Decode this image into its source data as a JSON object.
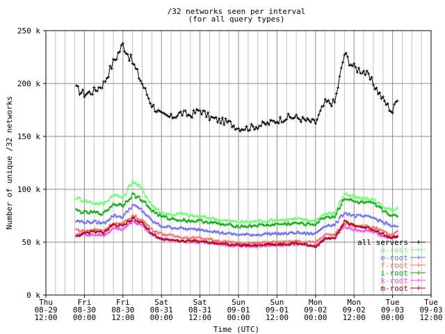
{
  "chart_data": {
    "type": "line",
    "title": "/32 networks seen per interval",
    "subtitle": "(for all query types)",
    "xlabel": "Time (UTC)",
    "ylabel": "Number of unique /32 networks",
    "grid": true,
    "legend_position": "bottom-right",
    "ylim": [
      0,
      250000
    ],
    "yticks": [
      "0 k",
      "50 k",
      "100 k",
      "150 k",
      "200 k",
      "250 k"
    ],
    "xlim": [
      -12,
      108
    ],
    "xticks": [
      {
        "h": -12,
        "lines": [
          "Thu",
          "08-29",
          "12:00"
        ]
      },
      {
        "h": 0,
        "lines": [
          "Fri",
          "08-30",
          "00:00"
        ]
      },
      {
        "h": 12,
        "lines": [
          "Fri",
          "08-30",
          "12:00"
        ]
      },
      {
        "h": 24,
        "lines": [
          "Sat",
          "08-31",
          "00:00"
        ]
      },
      {
        "h": 36,
        "lines": [
          "Sat",
          "08-31",
          "12:00"
        ]
      },
      {
        "h": 48,
        "lines": [
          "Sun",
          "09-01",
          "00:00"
        ]
      },
      {
        "h": 60,
        "lines": [
          "Sun",
          "09-01",
          "12:00"
        ]
      },
      {
        "h": 72,
        "lines": [
          "Mon",
          "09-02",
          "00:00"
        ]
      },
      {
        "h": 84,
        "lines": [
          "Mon",
          "09-02",
          "12:00"
        ]
      },
      {
        "h": 96,
        "lines": [
          "Tue",
          "09-03",
          "00:00"
        ]
      },
      {
        "h": 108,
        "lines": [
          "Tue",
          "09-03",
          "12:00"
        ]
      }
    ],
    "x_hours": [
      -2.5,
      0,
      3,
      6,
      9,
      12,
      15,
      18,
      21,
      24,
      27,
      30,
      33,
      36,
      39,
      42,
      45,
      48,
      51,
      54,
      57,
      60,
      63,
      66,
      69,
      72,
      75,
      78,
      81,
      84,
      87,
      90,
      93,
      96,
      97.5
    ],
    "series": [
      {
        "name": "all servers",
        "color": "#000000",
        "values": [
          195000,
          190000,
          193000,
          200000,
          220000,
          237000,
          220000,
          200000,
          180000,
          170000,
          168000,
          172000,
          170000,
          175000,
          168000,
          165000,
          163000,
          158000,
          158000,
          160000,
          162000,
          165000,
          168000,
          168000,
          165000,
          163000,
          182000,
          182000,
          228000,
          215000,
          212000,
          200000,
          185000,
          173000,
          187000
        ]
      },
      {
        "name": "a-root",
        "color": "#66ff66",
        "values": [
          92000,
          89000,
          87000,
          86000,
          95000,
          92000,
          108000,
          100000,
          85000,
          78000,
          76000,
          77000,
          75000,
          74000,
          73000,
          71000,
          70000,
          69000,
          69000,
          70000,
          70000,
          71000,
          71000,
          72000,
          71000,
          70000,
          77000,
          77000,
          96000,
          92000,
          91000,
          90000,
          84000,
          79000,
          81000
        ]
      },
      {
        "name": "e-root",
        "color": "#6666ff",
        "values": [
          70000,
          69000,
          69000,
          68000,
          75000,
          74000,
          85000,
          80000,
          70000,
          65000,
          64000,
          63000,
          62000,
          62000,
          61000,
          59000,
          58000,
          57000,
          57000,
          57000,
          58000,
          58000,
          58000,
          59000,
          58000,
          58000,
          66000,
          66000,
          78000,
          75000,
          74000,
          73000,
          69000,
          65000,
          64000
        ]
      },
      {
        "name": "f-root",
        "color": "#ff6666",
        "values": [
          62000,
          60000,
          62000,
          61000,
          68000,
          67000,
          75000,
          71000,
          62000,
          58000,
          56000,
          55000,
          54000,
          54000,
          53000,
          51000,
          50000,
          49000,
          49000,
          49000,
          50000,
          50000,
          50000,
          51000,
          50000,
          50000,
          57000,
          57000,
          68000,
          66000,
          65000,
          64000,
          60000,
          56000,
          60000
        ]
      },
      {
        "name": "i-root",
        "color": "#00aa00",
        "values": [
          80000,
          78000,
          78000,
          77000,
          86000,
          85000,
          95000,
          90000,
          80000,
          74000,
          72000,
          71000,
          70000,
          70000,
          69000,
          67000,
          66000,
          65000,
          65000,
          66000,
          66000,
          67000,
          67000,
          68000,
          67000,
          67000,
          74000,
          74000,
          92000,
          88000,
          87000,
          86000,
          80000,
          75000,
          74000
        ]
      },
      {
        "name": "k-root",
        "color": "#ff44ff",
        "values": [
          58000,
          57000,
          57000,
          56000,
          63000,
          62000,
          70000,
          66000,
          57000,
          53000,
          52000,
          51000,
          50000,
          50000,
          49000,
          48000,
          47000,
          46000,
          46000,
          46000,
          47000,
          47000,
          47000,
          48000,
          47000,
          47000,
          54000,
          54000,
          65000,
          62000,
          61000,
          60000,
          56000,
          53000,
          55000
        ]
      },
      {
        "name": "m-root",
        "color": "#aa0000",
        "values": [
          56000,
          58000,
          60000,
          59000,
          66000,
          65000,
          72000,
          68000,
          58000,
          53000,
          52000,
          51000,
          51000,
          51000,
          50000,
          49000,
          48000,
          47000,
          47000,
          47000,
          48000,
          48000,
          48000,
          49000,
          48000,
          45000,
          54000,
          54000,
          69000,
          66000,
          64000,
          62000,
          58000,
          54000,
          56000
        ]
      }
    ]
  }
}
